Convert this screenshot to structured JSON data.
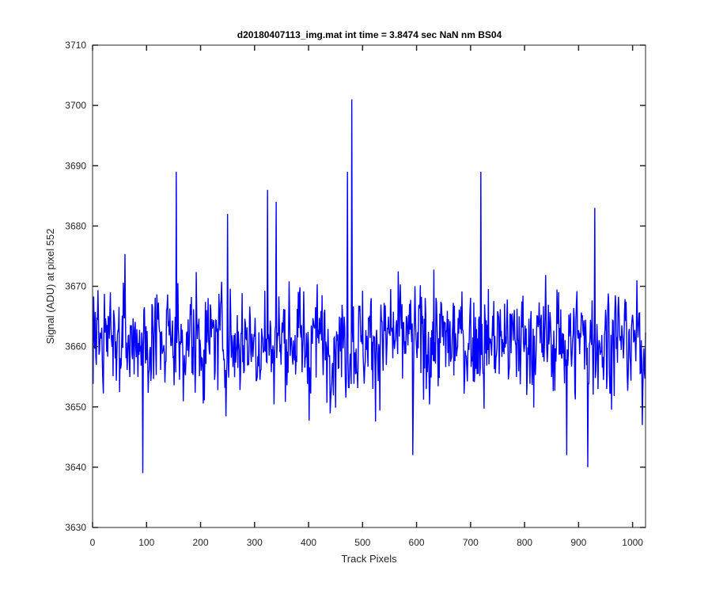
{
  "chart_data": {
    "type": "line",
    "title": "d20180407113_img.mat int time = 3.8474 sec  NaN nm BS04",
    "xlabel": "Track Pixels",
    "ylabel": "Signal (ADU) at pixel 552",
    "xlim": [
      0,
      1024
    ],
    "ylim": [
      3630,
      3710
    ],
    "xticks": [
      0,
      100,
      200,
      300,
      400,
      500,
      600,
      700,
      800,
      900,
      1000
    ],
    "yticks": [
      3630,
      3640,
      3650,
      3660,
      3670,
      3680,
      3690,
      3700,
      3710
    ],
    "grid": false,
    "legend": "none",
    "line_color": "#0000ff",
    "axis_color": "#262626",
    "series": [
      {
        "x_start": 1,
        "x_step": 1,
        "summary": {
          "points": 1024,
          "mean": 3661,
          "min": 3639,
          "max": 3701
        },
        "notable_points": [
          {
            "x": 93,
            "y": 3639
          },
          {
            "x": 155,
            "y": 3689
          },
          {
            "x": 250,
            "y": 3682
          },
          {
            "x": 324,
            "y": 3686
          },
          {
            "x": 340,
            "y": 3684
          },
          {
            "x": 472,
            "y": 3689
          },
          {
            "x": 480,
            "y": 3701
          },
          {
            "x": 593,
            "y": 3642
          },
          {
            "x": 719,
            "y": 3689
          },
          {
            "x": 878,
            "y": 3642
          },
          {
            "x": 917,
            "y": 3640
          },
          {
            "x": 930,
            "y": 3683
          },
          {
            "x": 1018,
            "y": 3647
          }
        ]
      }
    ]
  }
}
